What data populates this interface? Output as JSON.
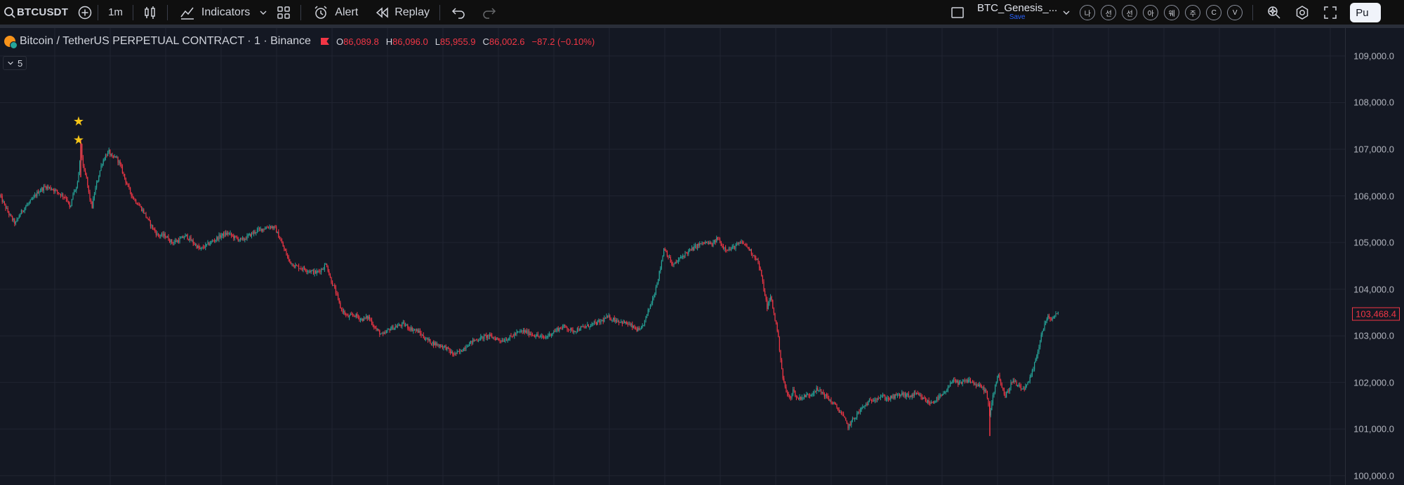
{
  "toolbar": {
    "symbol": "BTCUSDT",
    "interval": "1m",
    "indicators_label": "Indicators",
    "alert_label": "Alert",
    "replay_label": "Replay",
    "layout_name": "BTC_Genesis_...",
    "save_label": "Save",
    "korean_buttons": [
      "나",
      "선",
      "선",
      "아",
      "웨",
      "주",
      "C",
      "V"
    ],
    "publish_label": "Pu"
  },
  "legend": {
    "title": "Bitcoin / TetherUS PERPETUAL CONTRACT · 1 · Binance",
    "open_key": "O",
    "open": "86,089.8",
    "high_key": "H",
    "high": "86,096.0",
    "low_key": "L",
    "low": "85,955.9",
    "close_key": "C",
    "close": "86,002.6",
    "change": "−87.2 (−0.10%)",
    "collapse_count": "5"
  },
  "price_axis": {
    "labels": [
      "109,000.0",
      "108,000.0",
      "107,000.0",
      "106,000.0",
      "105,000.0",
      "104,000.0",
      "103,000.0",
      "102,000.0",
      "101,000.0",
      "100,000.0"
    ],
    "last_price": "103,468.4"
  },
  "colors": {
    "up": "#26a69a",
    "down": "#f23645",
    "background": "#141823",
    "grid": "#202431",
    "star": "#f5c518"
  },
  "chart_data": {
    "type": "line",
    "title": "",
    "xlabel": "",
    "ylabel": "",
    "ylim": [
      99800,
      109600
    ],
    "price_trace": [
      [
        0,
        106000
      ],
      [
        8,
        105750
      ],
      [
        15,
        105550
      ],
      [
        22,
        105400
      ],
      [
        28,
        105600
      ],
      [
        35,
        105750
      ],
      [
        45,
        105900
      ],
      [
        55,
        106100
      ],
      [
        65,
        106200
      ],
      [
        75,
        106150
      ],
      [
        85,
        106050
      ],
      [
        95,
        105950
      ],
      [
        100,
        105700
      ],
      [
        104,
        106050
      ],
      [
        110,
        106200
      ],
      [
        113,
        106600
      ],
      [
        115,
        107100
      ],
      [
        117,
        106800
      ],
      [
        120,
        106500
      ],
      [
        123,
        106400
      ],
      [
        127,
        106000
      ],
      [
        131,
        105750
      ],
      [
        135,
        106100
      ],
      [
        140,
        106400
      ],
      [
        145,
        106700
      ],
      [
        150,
        106850
      ],
      [
        155,
        106950
      ],
      [
        160,
        106800
      ],
      [
        165,
        106850
      ],
      [
        170,
        106700
      ],
      [
        175,
        106500
      ],
      [
        182,
        106200
      ],
      [
        190,
        105950
      ],
      [
        198,
        105800
      ],
      [
        205,
        105650
      ],
      [
        212,
        105450
      ],
      [
        218,
        105300
      ],
      [
        225,
        105150
      ],
      [
        235,
        105150
      ],
      [
        245,
        105000
      ],
      [
        255,
        105050
      ],
      [
        265,
        105150
      ],
      [
        275,
        105000
      ],
      [
        285,
        104850
      ],
      [
        295,
        104950
      ],
      [
        305,
        105050
      ],
      [
        315,
        105150
      ],
      [
        325,
        105200
      ],
      [
        335,
        105100
      ],
      [
        345,
        105050
      ],
      [
        355,
        105150
      ],
      [
        365,
        105250
      ],
      [
        375,
        105300
      ],
      [
        385,
        105350
      ],
      [
        392,
        105300
      ],
      [
        398,
        105100
      ],
      [
        405,
        104850
      ],
      [
        412,
        104600
      ],
      [
        420,
        104500
      ],
      [
        430,
        104450
      ],
      [
        440,
        104400
      ],
      [
        450,
        104350
      ],
      [
        460,
        104450
      ],
      [
        465,
        104550
      ],
      [
        470,
        104250
      ],
      [
        478,
        103950
      ],
      [
        485,
        103600
      ],
      [
        495,
        103400
      ],
      [
        505,
        103450
      ],
      [
        515,
        103350
      ],
      [
        525,
        103400
      ],
      [
        535,
        103150
      ],
      [
        545,
        103000
      ],
      [
        555,
        103150
      ],
      [
        565,
        103200
      ],
      [
        575,
        103250
      ],
      [
        585,
        103150
      ],
      [
        595,
        103100
      ],
      [
        605,
        102950
      ],
      [
        615,
        102850
      ],
      [
        625,
        102800
      ],
      [
        635,
        102750
      ],
      [
        645,
        102600
      ],
      [
        655,
        102650
      ],
      [
        665,
        102800
      ],
      [
        675,
        102900
      ],
      [
        685,
        102950
      ],
      [
        695,
        103000
      ],
      [
        705,
        102950
      ],
      [
        715,
        102900
      ],
      [
        725,
        102950
      ],
      [
        735,
        103050
      ],
      [
        745,
        103100
      ],
      [
        755,
        103050
      ],
      [
        765,
        103000
      ],
      [
        775,
        102950
      ],
      [
        785,
        103050
      ],
      [
        795,
        103150
      ],
      [
        805,
        103200
      ],
      [
        815,
        103100
      ],
      [
        825,
        103150
      ],
      [
        835,
        103200
      ],
      [
        845,
        103250
      ],
      [
        855,
        103300
      ],
      [
        865,
        103400
      ],
      [
        875,
        103350
      ],
      [
        885,
        103300
      ],
      [
        895,
        103250
      ],
      [
        905,
        103150
      ],
      [
        912,
        103100
      ],
      [
        918,
        103300
      ],
      [
        925,
        103600
      ],
      [
        932,
        103900
      ],
      [
        940,
        104400
      ],
      [
        946,
        104900
      ],
      [
        952,
        104700
      ],
      [
        958,
        104500
      ],
      [
        965,
        104600
      ],
      [
        975,
        104750
      ],
      [
        985,
        104850
      ],
      [
        995,
        104950
      ],
      [
        1005,
        105000
      ],
      [
        1015,
        104950
      ],
      [
        1022,
        105100
      ],
      [
        1030,
        104900
      ],
      [
        1040,
        104850
      ],
      [
        1050,
        104950
      ],
      [
        1058,
        105000
      ],
      [
        1065,
        104900
      ],
      [
        1072,
        104750
      ],
      [
        1078,
        104650
      ],
      [
        1083,
        104400
      ],
      [
        1088,
        104000
      ],
      [
        1093,
        103600
      ],
      [
        1098,
        103850
      ],
      [
        1102,
        103500
      ],
      [
        1107,
        103150
      ],
      [
        1111,
        102650
      ],
      [
        1115,
        102100
      ],
      [
        1120,
        101800
      ],
      [
        1125,
        101650
      ],
      [
        1130,
        101850
      ],
      [
        1135,
        101650
      ],
      [
        1145,
        101700
      ],
      [
        1155,
        101750
      ],
      [
        1162,
        101850
      ],
      [
        1170,
        101800
      ],
      [
        1180,
        101650
      ],
      [
        1190,
        101500
      ],
      [
        1200,
        101300
      ],
      [
        1208,
        101050
      ],
      [
        1215,
        101200
      ],
      [
        1225,
        101400
      ],
      [
        1235,
        101550
      ],
      [
        1245,
        101650
      ],
      [
        1255,
        101700
      ],
      [
        1265,
        101650
      ],
      [
        1275,
        101700
      ],
      [
        1285,
        101750
      ],
      [
        1295,
        101700
      ],
      [
        1305,
        101750
      ],
      [
        1315,
        101650
      ],
      [
        1325,
        101550
      ],
      [
        1335,
        101650
      ],
      [
        1345,
        101750
      ],
      [
        1352,
        101900
      ],
      [
        1358,
        102100
      ],
      [
        1365,
        101950
      ],
      [
        1372,
        102000
      ],
      [
        1380,
        102050
      ],
      [
        1390,
        101950
      ],
      [
        1398,
        101900
      ],
      [
        1405,
        101800
      ],
      [
        1410,
        101250
      ],
      [
        1413,
        101600
      ],
      [
        1417,
        101900
      ],
      [
        1422,
        102200
      ],
      [
        1427,
        101900
      ],
      [
        1432,
        101700
      ],
      [
        1437,
        101850
      ],
      [
        1442,
        102050
      ],
      [
        1448,
        101950
      ],
      [
        1455,
        101850
      ],
      [
        1462,
        101900
      ],
      [
        1468,
        102100
      ],
      [
        1473,
        102350
      ],
      [
        1478,
        102650
      ],
      [
        1483,
        103000
      ],
      [
        1488,
        103250
      ],
      [
        1493,
        103400
      ],
      [
        1498,
        103350
      ],
      [
        1503,
        103450
      ],
      [
        1508,
        103470
      ]
    ],
    "extreme_wicks": [
      {
        "x": 1410,
        "low": 100850,
        "high": 101600
      },
      {
        "x": 115,
        "low": 106400,
        "high": 107200
      }
    ],
    "markers": [
      {
        "x": 112,
        "price": 107600,
        "symbol": "★"
      },
      {
        "x": 112,
        "price": 107200,
        "symbol": "★"
      }
    ]
  }
}
